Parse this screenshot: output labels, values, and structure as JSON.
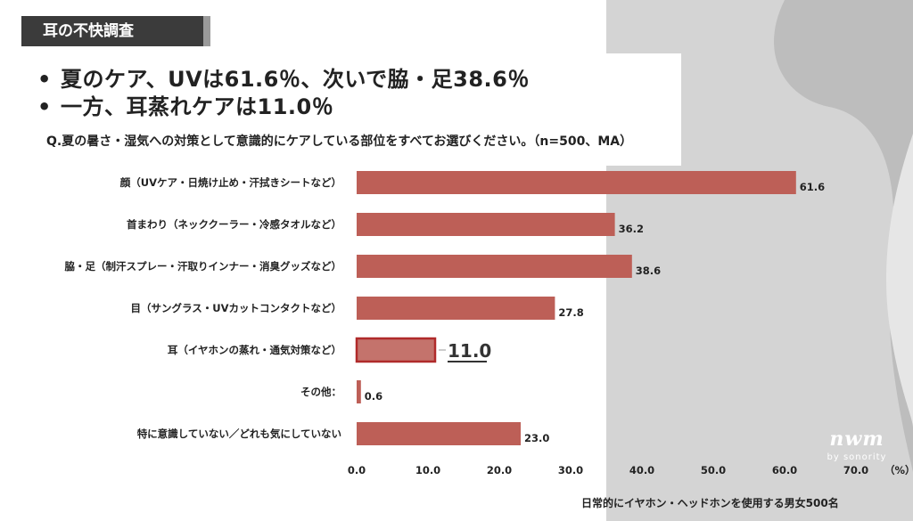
{
  "header": {
    "tag": "耳の不快調査"
  },
  "bullets": [
    "夏のケア、UVは61.6％、次いで脇・足38.6％",
    "一方、耳蒸れケアは11.0％"
  ],
  "question": "Q.夏の暑さ・湿気への対策として意識的にケアしている部位をすべてお選びください。（n=500、MA）",
  "footnote": "日常的にイヤホン・ヘッドホンを使用する男女500名",
  "logo": {
    "mark": "nwm",
    "sub": "by sonority"
  },
  "colors": {
    "bar": "#bd5f57",
    "bar_highlight_border": "#b02a2a",
    "tag_bg": "#3b3b3b",
    "panel": "#d4d4d4"
  },
  "chart_data": {
    "type": "bar",
    "orientation": "horizontal",
    "categories": [
      "顔（UVケア・日焼け止め・汗拭きシートなど）",
      "首まわり（ネッククーラー・冷感タオルなど）",
      "脇・足（制汗スプレー・汗取りインナー・消臭グッズなど）",
      "目（サングラス・UVカットコンタクトなど）",
      "耳（イヤホンの蒸れ・通気対策など）",
      "その他：",
      "特に意識していない／どれも気にしていない"
    ],
    "values": [
      61.6,
      36.2,
      38.6,
      27.8,
      11.0,
      0.6,
      23.0
    ],
    "value_labels": [
      "61.6",
      "36.2",
      "38.6",
      "27.8",
      "11.0",
      "0.6",
      "23.0"
    ],
    "highlight_index": 4,
    "xlim": [
      0,
      70
    ],
    "xticks": [
      "0.0",
      "10.0",
      "20.0",
      "30.0",
      "40.0",
      "50.0",
      "60.0",
      "70.0"
    ],
    "xunit": "（%）",
    "grid": false
  }
}
